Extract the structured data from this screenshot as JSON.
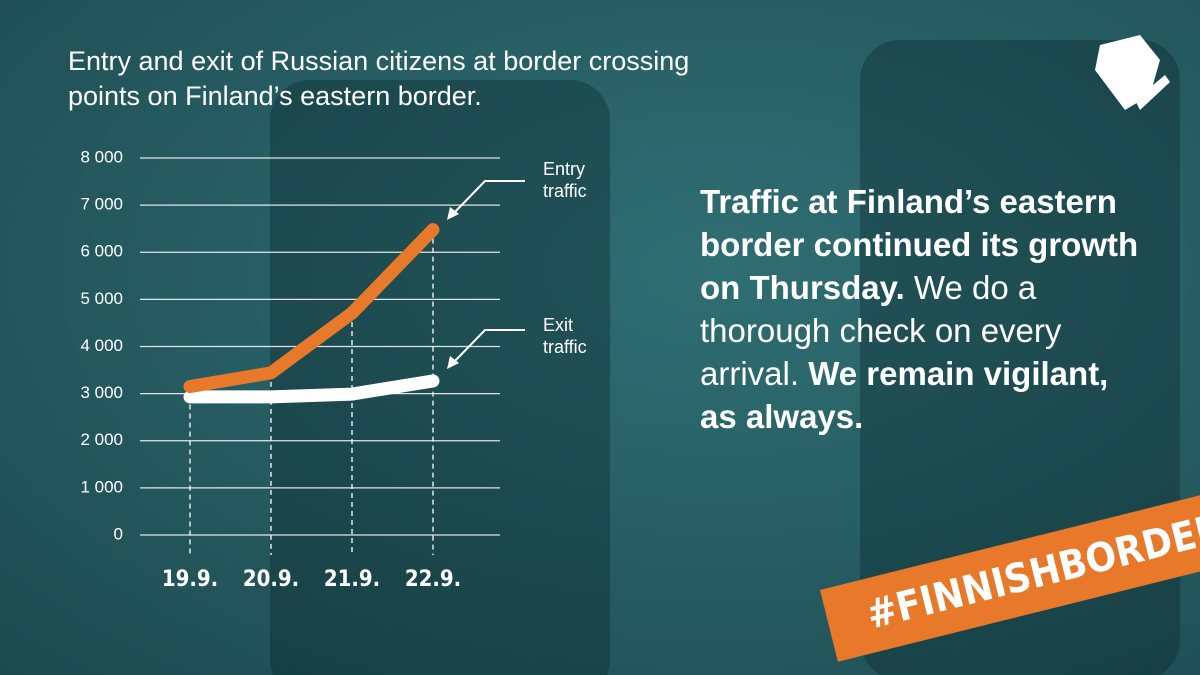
{
  "chart_data": {
    "type": "line",
    "title": "Entry and exit of Russian citizens at border crossing points on Finland’s eastern border.",
    "categories": [
      "19.9.",
      "20.9.",
      "21.9.",
      "22.9."
    ],
    "series": [
      {
        "name": "Entry traffic",
        "color": "#e8792b",
        "values": [
          3150,
          3440,
          4710,
          6480
        ]
      },
      {
        "name": "Exit traffic",
        "color": "#ffffff",
        "values": [
          2930,
          2930,
          2990,
          3270
        ]
      }
    ],
    "ylim": [
      0,
      8000
    ],
    "yticks": [
      0,
      {
        "value": 1000,
        "label": "1 000"
      },
      {
        "value": 2000,
        "label": "2 000"
      },
      {
        "value": 3000,
        "label": "3 000"
      },
      {
        "value": 4000,
        "label": "4 000"
      },
      {
        "value": 5000,
        "label": "5 000"
      },
      {
        "value": 6000,
        "label": "6 000"
      },
      {
        "value": 7000,
        "label": "7 000"
      },
      {
        "value": 8000,
        "label": "8 000"
      }
    ],
    "grid": true
  },
  "message": [
    {
      "text": "Traffic at Finland’s eastern border continued its growth on Thursday.",
      "bold": true
    },
    {
      "text": "We do a thorough check on every arrival.",
      "bold": false
    },
    {
      "text": "We remain vigilant, as always.",
      "bold": true
    }
  ],
  "hashtag": "#FINNISHBORDER"
}
